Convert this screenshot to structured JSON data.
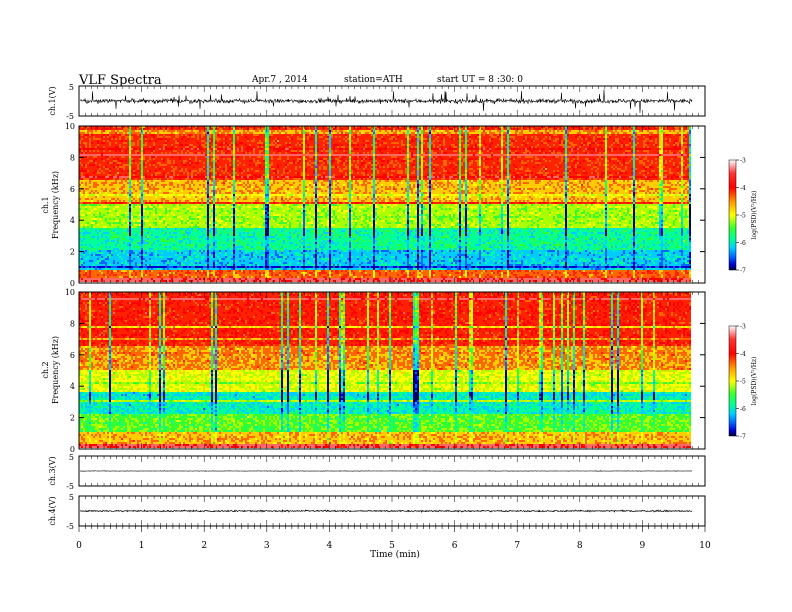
{
  "header": {
    "title": "VLF  Spectra",
    "date": "Apr.7  , 2014",
    "station": "station=ATH",
    "start": "start  UT  =   8  :30: 0"
  },
  "colors": {
    "colormap": [
      "#000066",
      "#0000cc",
      "#0066ff",
      "#00ccff",
      "#00ff99",
      "#33ff33",
      "#aaff00",
      "#ffff00",
      "#ffcc00",
      "#ff6600",
      "#ff2200",
      "#ff0000",
      "#ff6666",
      "#ffffff"
    ]
  },
  "chart_data": [
    {
      "type": "line",
      "panel": "ch1-waveform",
      "ylabel": "ch.1(V)",
      "ylim": [
        -5,
        5
      ],
      "yticks": [
        "5",
        "-5"
      ],
      "xlim": [
        0,
        10
      ],
      "amplitude_typical": 1.2,
      "spike_max": 3.5
    },
    {
      "type": "heatmap",
      "panel": "ch1-spectrogram",
      "ylabel": [
        "ch.1",
        "Frequency  (kHz)"
      ],
      "ylim": [
        0,
        10
      ],
      "yticks": [
        "0",
        "2",
        "4",
        "6",
        "8",
        "10"
      ],
      "xlim": [
        0,
        9.8
      ],
      "colorbar": {
        "label": "log(PSD)(V²/Hz)",
        "range": [
          -7,
          -3
        ],
        "ticks": [
          "-3",
          "-4",
          "-5",
          "-6",
          "-7"
        ]
      },
      "bands_khz": [
        {
          "from": 0,
          "to": 0.2,
          "level": -3.2
        },
        {
          "from": 0.2,
          "to": 0.8,
          "level": -4.0
        },
        {
          "from": 0.8,
          "to": 2.0,
          "level": -5.9
        },
        {
          "from": 2.0,
          "to": 3.5,
          "level": -5.6
        },
        {
          "from": 3.5,
          "to": 5.0,
          "level": -5.0
        },
        {
          "from": 5.0,
          "to": 6.5,
          "level": -4.3
        },
        {
          "from": 6.5,
          "to": 10,
          "level": -3.8
        }
      ]
    },
    {
      "type": "heatmap",
      "panel": "ch2-spectrogram",
      "ylabel": [
        "ch.2",
        "Frequency  (kHz)"
      ],
      "ylim": [
        0,
        10
      ],
      "yticks": [
        "0",
        "2",
        "4",
        "6",
        "8",
        "10"
      ],
      "xlim": [
        0,
        9.8
      ],
      "colorbar": {
        "label": "log(PSD)(V²/Hz)",
        "range": [
          -7,
          -3
        ],
        "ticks": [
          "-3",
          "-4",
          "-5",
          "-6",
          "-7"
        ]
      },
      "bands_khz": [
        {
          "from": 0,
          "to": 0.2,
          "level": -3.2
        },
        {
          "from": 0.2,
          "to": 1.0,
          "level": -4.3
        },
        {
          "from": 1.0,
          "to": 2.2,
          "level": -5.2
        },
        {
          "from": 2.2,
          "to": 3.6,
          "level": -5.7
        },
        {
          "from": 3.6,
          "to": 5.0,
          "level": -4.8
        },
        {
          "from": 5.0,
          "to": 6.5,
          "level": -4.2
        },
        {
          "from": 6.5,
          "to": 10,
          "level": -3.7
        }
      ]
    },
    {
      "type": "line",
      "panel": "ch3-waveform",
      "ylabel": "ch.3(V)",
      "ylim": [
        -5,
        5
      ],
      "yticks": [
        "5",
        "-5"
      ],
      "xlim": [
        0,
        9.8
      ],
      "baseline": 0,
      "amplitude_typical": 0.15
    },
    {
      "type": "line",
      "panel": "ch4-waveform",
      "ylabel": "ch.4(V)",
      "ylim": [
        -5,
        5
      ],
      "yticks": [
        "5",
        "-5"
      ],
      "xlim": [
        0,
        9.8
      ],
      "baseline": 0,
      "amplitude_typical": 0.4
    },
    {
      "type": "axis",
      "panel": "time-axis",
      "xlabel": "Time  (min)",
      "xlim": [
        0,
        10
      ],
      "xticks": [
        "0",
        "1",
        "2",
        "3",
        "4",
        "5",
        "6",
        "7",
        "8",
        "9",
        "10"
      ]
    }
  ]
}
